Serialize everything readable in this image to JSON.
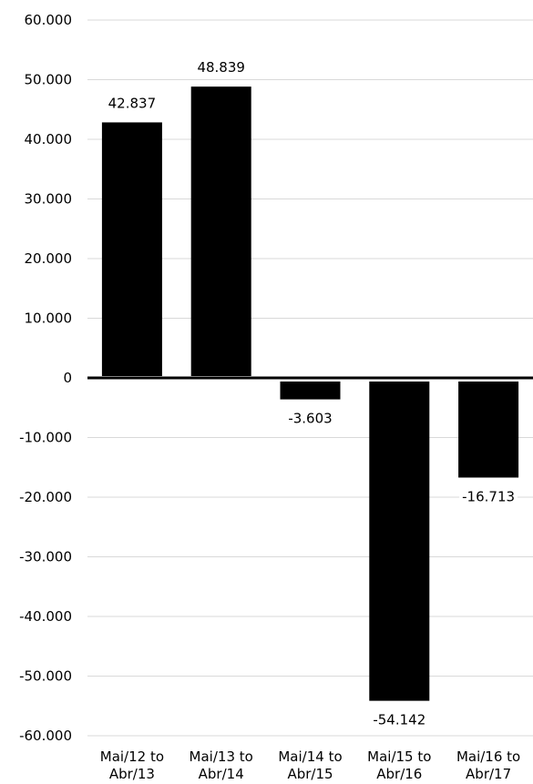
{
  "chart_data": {
    "type": "bar",
    "categories": [
      [
        "Mai/12 to",
        "Abr/13"
      ],
      [
        "Mai/13 to",
        "Abr/14"
      ],
      [
        "Mai/14 to",
        "Abr/15"
      ],
      [
        "Mai/15 to",
        "Abr/16"
      ],
      [
        "Mai/16 to",
        "Abr/17"
      ]
    ],
    "values": [
      42837,
      48839,
      -3603,
      -54142,
      -16713
    ],
    "value_labels": [
      "42.837",
      "48.839",
      "-3.603",
      "-54.142",
      "-16.713"
    ],
    "title": "",
    "xlabel": "",
    "ylabel": "",
    "ylim": [
      -60000,
      60000
    ],
    "yticks": [
      60000,
      50000,
      40000,
      30000,
      20000,
      10000,
      0,
      -10000,
      -20000,
      -30000,
      -40000,
      -50000,
      -60000
    ],
    "ytick_labels": [
      "60.000",
      "50.000",
      "40.000",
      "30.000",
      "20.000",
      "10.000",
      "0",
      "-10.000",
      "-20.000",
      "-30.000",
      "-40.000",
      "-50.000",
      "-60.000"
    ],
    "grid": true,
    "legend": "none",
    "bar_color": "#000000",
    "grid_color": "#d9d9d9",
    "zero_line_color": "#000000"
  }
}
